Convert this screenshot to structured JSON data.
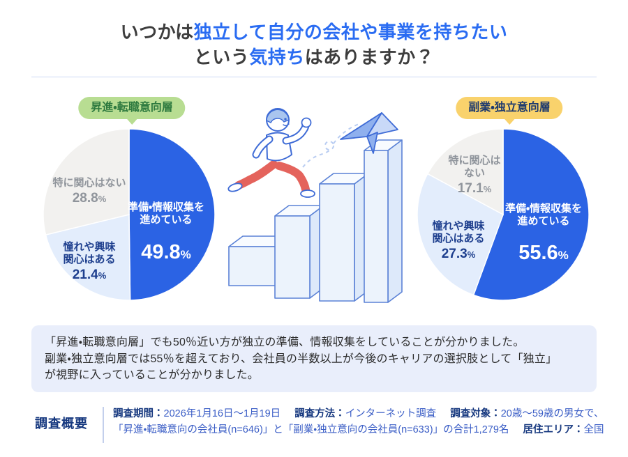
{
  "title": {
    "line1": [
      {
        "text": "いつかは",
        "accent": false
      },
      {
        "text": "独立して自分の会社や事業を持ちたい",
        "accent": true
      }
    ],
    "line2": [
      {
        "text": "という",
        "accent": false
      },
      {
        "text": "気持ち",
        "accent": true
      },
      {
        "text": "はありますか？",
        "accent": false
      }
    ],
    "accent_color": "#2a6cf2",
    "text_color": "#3d3d3d"
  },
  "misc": {
    "percent_sign": "%"
  },
  "chart_data": [
    {
      "type": "pie",
      "group_label": "昇進・転職意向層",
      "badge": {
        "label": "昇進・転職意向層",
        "bg": "#b8dd92",
        "text_color": "#2e7a3f"
      },
      "start": "top",
      "direction": "clockwise",
      "slices": [
        {
          "label": "準備・情報収集を進めている",
          "label_lines": [
            "準備・情報収集を",
            "進めている"
          ],
          "value": 49.8,
          "display": "49.8",
          "color": "#2b63e4"
        },
        {
          "label": "憧れや興味関心はある",
          "label_lines": [
            "憧れや興味",
            "関心はある"
          ],
          "value": 21.4,
          "display": "21.4",
          "color": "#e3edfc"
        },
        {
          "label": "特に関心はない",
          "label_lines": [
            "特に関心はない"
          ],
          "value": 28.8,
          "display": "28.8",
          "color": "#f2f1ef"
        }
      ]
    },
    {
      "type": "pie",
      "group_label": "副業・独立意向層",
      "badge": {
        "label": "副業・独立意向層",
        "bg": "#f9d26c",
        "text_color": "#1e3a6e"
      },
      "start": "top",
      "direction": "clockwise",
      "slices": [
        {
          "label": "準備・情報収集を進めている",
          "label_lines": [
            "準備・情報収集を",
            "進めている"
          ],
          "value": 55.6,
          "display": "55.6",
          "color": "#2b63e4"
        },
        {
          "label": "憧れや興味関心はある",
          "label_lines": [
            "憧れや興味",
            "関心はある"
          ],
          "value": 27.3,
          "display": "27.3",
          "color": "#e3edfc"
        },
        {
          "label": "特に関心はない",
          "label_lines": [
            "特に関心は",
            "ない"
          ],
          "value": 17.1,
          "display": "17.1",
          "color": "#f2f1ef"
        }
      ]
    }
  ],
  "summary": {
    "bg_color": "#e9eefb",
    "lines": [
      "「昇進・転職意向層」でも50％近い方が独立の準備、情報収集をしていることが分かりました。",
      "副業・独立意向層では55％を超えており、会社員の半数以上が今後のキャリアの選択肢として「独立」",
      "が視野に入っていることが分かりました。"
    ]
  },
  "survey": {
    "heading": "調査概要",
    "line1": [
      {
        "label": "調査期間：",
        "value": "2026年1月16日〜1月19日"
      },
      {
        "label": "調査方法：",
        "value": "インターネット調査"
      },
      {
        "label": "調査対象：",
        "value": "20歳〜59歳の男女で、"
      }
    ],
    "line2": [
      {
        "label": "",
        "value": "「昇進・転職意向の会社員(n=646)」と「副業・独立意向の会社員(n=633)」の合計1,279名"
      },
      {
        "label": "居住エリア：",
        "value": "全国"
      }
    ]
  }
}
